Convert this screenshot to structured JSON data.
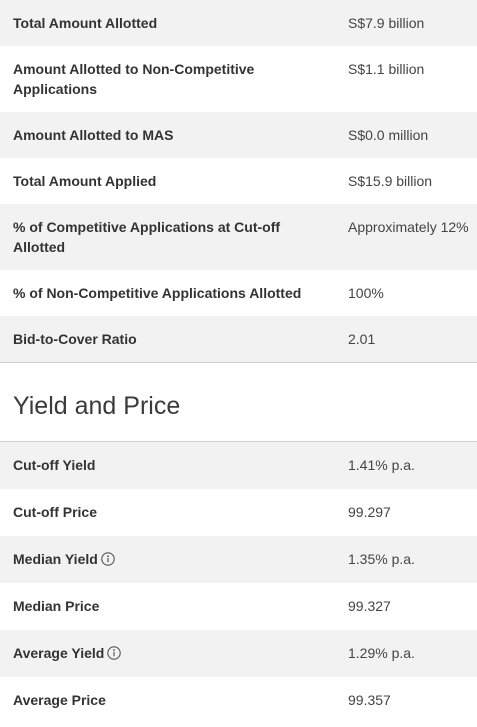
{
  "auction_results": {
    "rows": [
      {
        "label": "Total Amount Allotted",
        "value": "S$7.9 billion"
      },
      {
        "label": "Amount Allotted to Non-Competitive Applications",
        "value": "S$1.1 billion"
      },
      {
        "label": "Amount Allotted to MAS",
        "value": "S$0.0 million"
      },
      {
        "label": "Total Amount Applied",
        "value": "S$15.9 billion"
      },
      {
        "label": "% of Competitive Applications at Cut-off Allotted",
        "value": "Approximately 12%"
      },
      {
        "label": "% of Non-Competitive Applications Allotted",
        "value": "100%"
      },
      {
        "label": "Bid-to-Cover Ratio",
        "value": "2.01"
      }
    ]
  },
  "yield_and_price": {
    "heading": "Yield and Price",
    "rows": [
      {
        "label": "Cut-off Yield",
        "value": "1.41% p.a.",
        "info_icon": false
      },
      {
        "label": "Cut-off Price",
        "value": "99.297",
        "info_icon": false
      },
      {
        "label": "Median Yield",
        "value": "1.35% p.a.",
        "info_icon": true
      },
      {
        "label": "Median Price",
        "value": "99.327",
        "info_icon": false
      },
      {
        "label": "Average Yield",
        "value": "1.29% p.a.",
        "info_icon": true
      },
      {
        "label": "Average Price",
        "value": "99.357",
        "info_icon": false
      }
    ]
  },
  "icons": {
    "info": "info-circle-icon"
  },
  "colors": {
    "row_alt": "#f2f2f2",
    "divider": "#cfcfcf",
    "text": "#333333"
  }
}
